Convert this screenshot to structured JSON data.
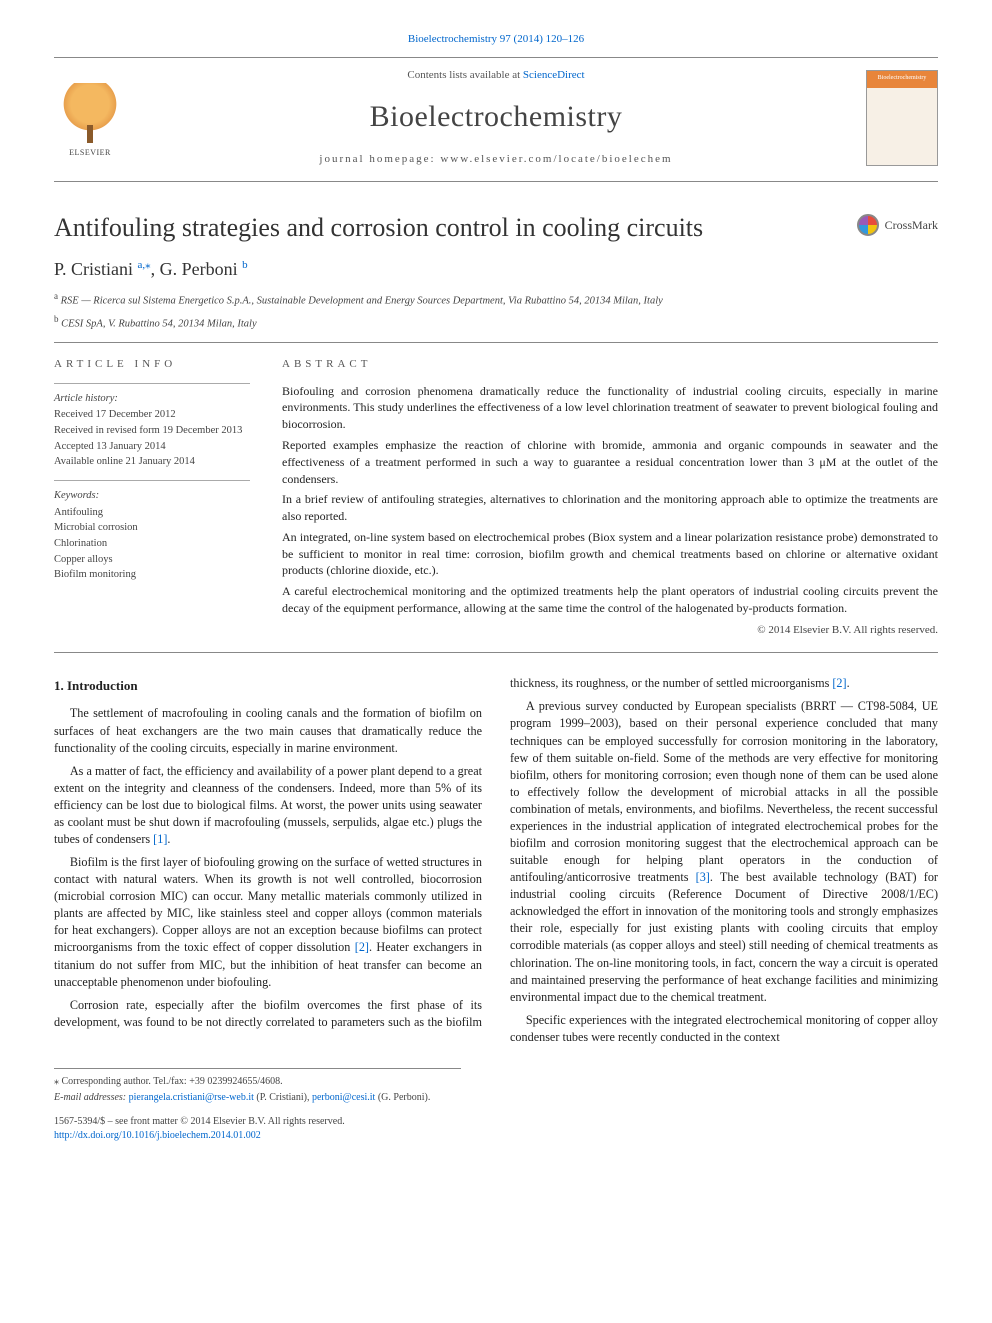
{
  "top_citation_link": "Bioelectrochemistry 97 (2014) 120–126",
  "header": {
    "contents_prefix": "Contents lists available at ",
    "contents_link_text": "ScienceDirect",
    "journal": "Bioelectrochemistry",
    "homepage_label": "journal homepage: www.elsevier.com/locate/bioelechem",
    "publisher_logo_text": "ELSEVIER",
    "cover_mini_title": "Bioelectrochemistry"
  },
  "crossmark_label": "CrossMark",
  "title": "Antifouling strategies and corrosion control in cooling circuits",
  "authors_html_parts": {
    "a1_name": "P. Cristiani",
    "a1_affil": "a",
    "a1_corr": "⁎",
    "sep": ", ",
    "a2_name": "G. Perboni",
    "a2_affil": "b"
  },
  "affiliations": {
    "a": "RSE — Ricerca sul Sistema Energetico S.p.A., Sustainable Development and Energy Sources Department, Via Rubattino 54, 20134 Milan, Italy",
    "b": "CESI SpA, V. Rubattino 54, 20134 Milan, Italy"
  },
  "article_info": {
    "heading": "article info",
    "history_label": "Article history:",
    "history": [
      "Received 17 December 2012",
      "Received in revised form 19 December 2013",
      "Accepted 13 January 2014",
      "Available online 21 January 2014"
    ],
    "keywords_label": "Keywords:",
    "keywords": [
      "Antifouling",
      "Microbial corrosion",
      "Chlorination",
      "Copper alloys",
      "Biofilm monitoring"
    ]
  },
  "abstract": {
    "heading": "abstract",
    "paragraphs": [
      "Biofouling and corrosion phenomena dramatically reduce the functionality of industrial cooling circuits, especially in marine environments. This study underlines the effectiveness of a low level chlorination treatment of seawater to prevent biological fouling and biocorrosion.",
      "Reported examples emphasize the reaction of chlorine with bromide, ammonia and organic compounds in seawater and the effectiveness of a treatment performed in such a way to guarantee a residual concentration lower than 3 μM at the outlet of the condensers.",
      "In a brief review of antifouling strategies, alternatives to chlorination and the monitoring approach able to optimize the treatments are also reported.",
      "An integrated, on-line system based on electrochemical probes (Biox system and a linear polarization resistance probe) demonstrated to be sufficient to monitor in real time: corrosion, biofilm growth and chemical treatments based on chlorine or alternative oxidant products (chlorine dioxide, etc.).",
      "A careful electrochemical monitoring and the optimized treatments help the plant operators of industrial cooling circuits prevent the decay of the equipment performance, allowing at the same time the control of the halogenated by-products formation."
    ],
    "copyright": "© 2014 Elsevier B.V. All rights reserved."
  },
  "body": {
    "section_heading": "1. Introduction",
    "paragraphs": [
      "The settlement of macrofouling in cooling canals and the formation of biofilm on surfaces of heat exchangers are the two main causes that dramatically reduce the functionality of the cooling circuits, especially in marine environment.",
      "As a matter of fact, the efficiency and availability of a power plant depend to a great extent on the integrity and cleanness of the condensers. Indeed, more than 5% of its efficiency can be lost due to biological films. At worst, the power units using seawater as coolant must be shut down if macrofouling (mussels, serpulids, algae etc.) plugs the tubes of condensers [1].",
      "Biofilm is the first layer of biofouling growing on the surface of wetted structures in contact with natural waters. When its growth is not well controlled, biocorrosion (microbial corrosion MIC) can occur. Many metallic materials commonly utilized in plants are affected by MIC, like stainless steel and copper alloys (common materials for heat exchangers). Copper alloys are not an exception because biofilms can protect microorganisms from the toxic effect of copper dissolution [2]. Heater exchangers in titanium do not suffer from MIC, but the inhibition of heat transfer can become an unacceptable phenomenon under biofouling.",
      "Corrosion rate, especially after the biofilm overcomes the first phase of its development, was found to be not directly correlated to parameters such as the biofilm thickness, its roughness, or the number of settled microorganisms [2].",
      "A previous survey conducted by European specialists (BRRT — CT98-5084, UE program 1999–2003), based on their personal experience concluded that many techniques can be employed successfully for corrosion monitoring in the laboratory, few of them suitable on-field. Some of the methods are very effective for monitoring biofilm, others for monitoring corrosion; even though none of them can be used alone to effectively follow the development of microbial attacks in all the possible combination of metals, environments, and biofilms. Nevertheless, the recent successful experiences in the industrial application of integrated electrochemical probes for the biofilm and corrosion monitoring suggest that the electrochemical approach can be suitable enough for helping plant operators in the conduction of antifouling/anticorrosive treatments [3]. The best available technology (BAT) for industrial cooling circuits (Reference Document of Directive 2008/1/EC) acknowledged the effort in innovation of the monitoring tools and strongly emphasizes their role, especially for just existing plants with cooling circuits that employ corrodible materials (as copper alloys and steel) still needing of chemical treatments as chlorination. The on-line monitoring tools, in fact, concern the way a circuit is operated and maintained preserving the performance of heat exchange facilities and minimizing environmental impact due to the chemical treatment.",
      "Specific experiences with the integrated electrochemical monitoring of copper alloy condenser tubes were recently conducted in the context"
    ]
  },
  "footnotes": {
    "corr": "Corresponding author. Tel./fax: +39 0239924655/4608.",
    "email_label": "E-mail addresses: ",
    "email1": "pierangela.cristiani@rse-web.it",
    "email1_who": " (P. Cristiani), ",
    "email2": "perboni@cesi.it",
    "email2_who": " (G. Perboni)."
  },
  "front_matter": {
    "line1": "1567-5394/$ – see front matter © 2014 Elsevier B.V. All rights reserved.",
    "doi": "http://dx.doi.org/10.1016/j.bioelechem.2014.01.002"
  },
  "colors": {
    "link": "#0066cc",
    "text": "#1a1a1a",
    "rule": "#888888",
    "muted": "#555555",
    "bg": "#ffffff"
  }
}
